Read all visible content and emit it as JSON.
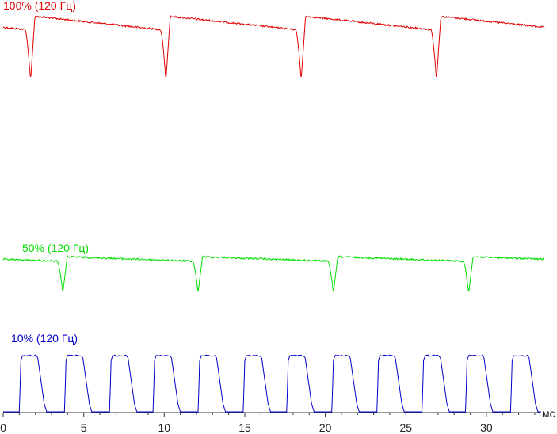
{
  "chart_data": {
    "type": "line",
    "xlabel": "мс",
    "xlim": [
      0,
      33.5
    ],
    "x_ticks": [
      0,
      5,
      10,
      15,
      20,
      25,
      30
    ],
    "tick_labels": [
      "0",
      "5",
      "10",
      "15",
      "20",
      "25",
      "30"
    ],
    "grid": false,
    "series": [
      {
        "name": "100% (120 Гц)",
        "color": "#e00000",
        "level_high": 0.96,
        "level_low": 0.88,
        "dip_min": 0.0,
        "dip_times_ms": [
          1.7,
          10.1,
          18.5,
          26.9
        ],
        "period_ms": 8.33
      },
      {
        "name": "50% (120 Гц)",
        "color": "#00dd00",
        "level_high": 0.5,
        "level_low": 0.47,
        "dip_min": 0.22,
        "dip_times_ms": [
          3.7,
          12.1,
          20.5,
          28.9
        ],
        "period_ms": 8.33
      },
      {
        "name": "10% (120 Гц)",
        "color": "#0000cc",
        "level_high": 0.1,
        "level_low": 0.0,
        "pulse_starts_ms": [
          1.1,
          3.9,
          6.7,
          9.4,
          12.2,
          15.0,
          17.7,
          20.5,
          23.3,
          26.1,
          28.8,
          31.6
        ],
        "pulse_width_ms": 1.3,
        "period_ms": 2.78
      }
    ]
  }
}
